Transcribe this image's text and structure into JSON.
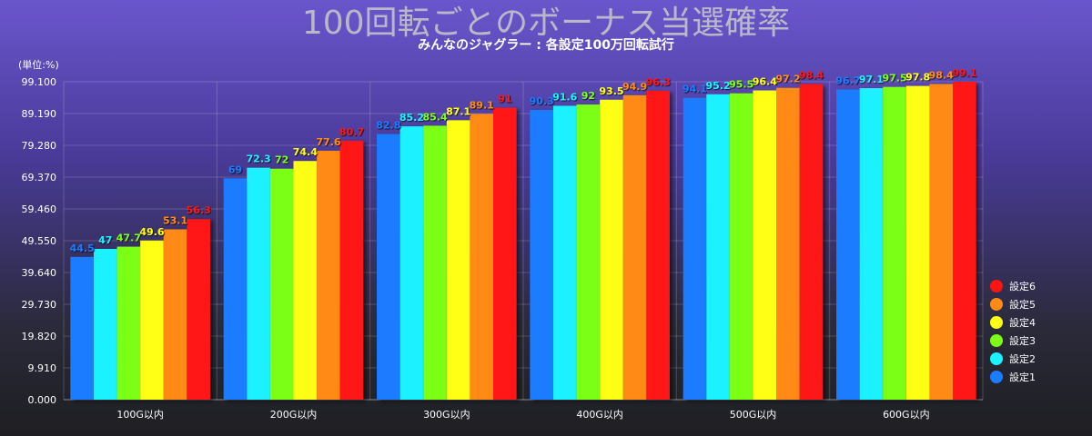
{
  "chart_data": {
    "type": "bar",
    "title": "100回転ごとのボーナス当選確率",
    "subtitle": "みんなのジャグラー : 各設定100万回転試行",
    "unit_label": "(単位:%)",
    "categories": [
      "100G以内",
      "200G以内",
      "300G以内",
      "400G以内",
      "500G以内",
      "600G以内"
    ],
    "ylim": [
      0,
      99.1
    ],
    "yticks": [
      0,
      9.91,
      19.82,
      29.73,
      39.64,
      49.55,
      59.46,
      69.37,
      79.28,
      89.19,
      99.1
    ],
    "ytick_labels": [
      "0.000",
      "9.910",
      "19.820",
      "29.730",
      "39.640",
      "49.550",
      "59.460",
      "69.370",
      "79.280",
      "89.190",
      "99.100"
    ],
    "grid": true,
    "legend_position": "right",
    "series": [
      {
        "name": "設定1",
        "color": "#1a7cff",
        "values": [
          44.5,
          69,
          82.8,
          90.3,
          94.1,
          96.7
        ],
        "labels": [
          "44.5",
          "69",
          "82.8",
          "90.3",
          "94.1",
          "96.7"
        ]
      },
      {
        "name": "設定2",
        "color": "#1cf2ff",
        "values": [
          47,
          72.3,
          85.2,
          91.6,
          95.2,
          97.1
        ],
        "labels": [
          "47",
          "72.3",
          "85.2",
          "91.6",
          "95.2",
          "97.1"
        ]
      },
      {
        "name": "設定3",
        "color": "#7cff14",
        "values": [
          47.7,
          72,
          85.4,
          92,
          95.5,
          97.5
        ],
        "labels": [
          "47.7",
          "72",
          "85.4",
          "92",
          "95.5",
          "97.5"
        ]
      },
      {
        "name": "設定4",
        "color": "#ffff14",
        "values": [
          49.6,
          74.4,
          87.1,
          93.5,
          96.4,
          97.8
        ],
        "labels": [
          "49.6",
          "74.4",
          "87.1",
          "93.5",
          "96.4",
          "97.8"
        ]
      },
      {
        "name": "設定5",
        "color": "#ff8a14",
        "values": [
          53.1,
          77.6,
          89.1,
          94.9,
          97.2,
          98.4
        ],
        "labels": [
          "53.1",
          "77.6",
          "89.1",
          "94.9",
          "97.2",
          "98.4"
        ]
      },
      {
        "name": "設定6",
        "color": "#ff1414",
        "values": [
          56.3,
          80.7,
          91,
          96.3,
          98.4,
          99.1
        ],
        "labels": [
          "56.3",
          "80.7",
          "91",
          "96.3",
          "98.4",
          "99.1"
        ]
      }
    ]
  }
}
